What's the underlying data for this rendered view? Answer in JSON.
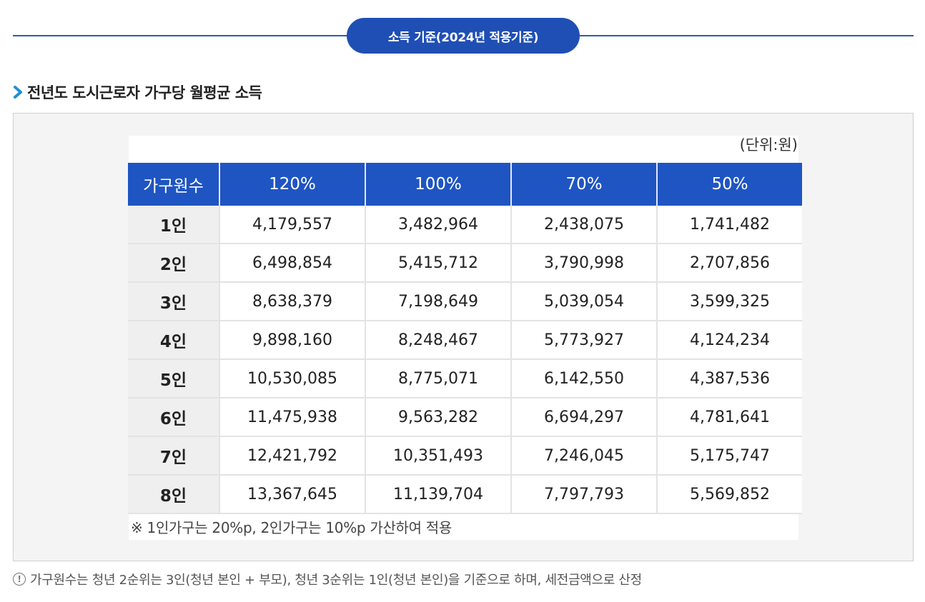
{
  "banner": {
    "label": "소득 기준(2024년 적용기준)"
  },
  "section": {
    "title": "전년도 도시근로자 가구당 월평균 소득"
  },
  "table": {
    "unit": "(단위:원)",
    "headers": [
      "가구원수",
      "120%",
      "100%",
      "70%",
      "50%"
    ],
    "rows": [
      [
        "1인",
        "4,179,557",
        "3,482,964",
        "2,438,075",
        "1,741,482"
      ],
      [
        "2인",
        "6,498,854",
        "5,415,712",
        "3,790,998",
        "2,707,856"
      ],
      [
        "3인",
        "8,638,379",
        "7,198,649",
        "5,039,054",
        "3,599,325"
      ],
      [
        "4인",
        "9,898,160",
        "8,248,467",
        "5,773,927",
        "4,124,234"
      ],
      [
        "5인",
        "10,530,085",
        "8,775,071",
        "6,142,550",
        "4,387,536"
      ],
      [
        "6인",
        "11,475,938",
        "9,563,282",
        "6,694,297",
        "4,781,641"
      ],
      [
        "7인",
        "12,421,792",
        "10,351,493",
        "7,246,045",
        "5,175,747"
      ],
      [
        "8인",
        "13,367,645",
        "11,139,704",
        "7,797,793",
        "5,569,852"
      ]
    ],
    "note": "※ 1인가구는 20%p, 2인가구는 10%p 가산하여 적용"
  },
  "footnote": {
    "icon": "info-icon",
    "text": "가구원수는 청년 2순위는 3인(청년 본인 + 부모), 청년 3순위는 1인(청년 본인)을 기준으로 하며, 세전금액으로 산정"
  },
  "colors": {
    "accent": "#1f4fb4",
    "header_bg": "#1f55c2",
    "row_head_bg": "#efefef"
  }
}
